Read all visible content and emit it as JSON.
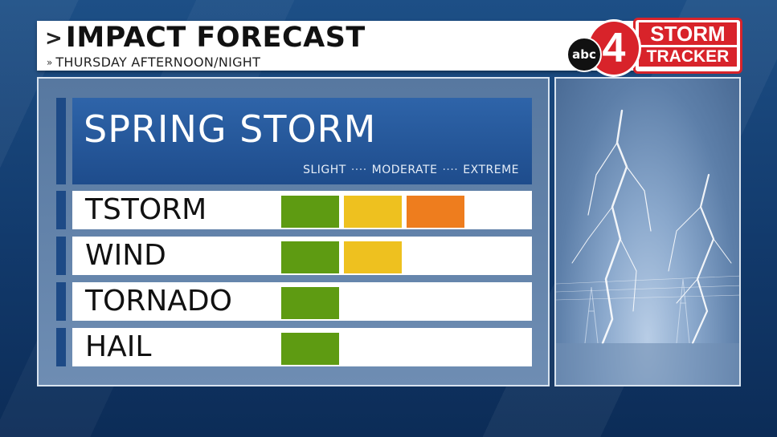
{
  "header": {
    "chevron": ">",
    "title": "IMPACT FORECAST",
    "subtitle_chevron": "»",
    "subtitle": "THURSDAY AFTERNOON/NIGHT"
  },
  "logo": {
    "network": "abc",
    "channel": "4",
    "line1": "STORM",
    "line2": "TRACKER",
    "brand_color": "#d8232a"
  },
  "panel": {
    "headline": "SPRING STORM",
    "scale": {
      "slight": "SLIGHT",
      "moderate": "MODERATE",
      "extreme": "EXTREME",
      "separator": "····"
    },
    "levels": {
      "slight_color": "#5e9b12",
      "moderate_color": "#eec11f",
      "extreme_color": "#ee7d1e"
    },
    "rows": [
      {
        "label": "TSTORM",
        "level": 3
      },
      {
        "label": "WIND",
        "level": 2
      },
      {
        "label": "TORNADO",
        "level": 1
      },
      {
        "label": "HAIL",
        "level": 1
      }
    ]
  },
  "image": {
    "icon": "lightning-storm-image"
  }
}
